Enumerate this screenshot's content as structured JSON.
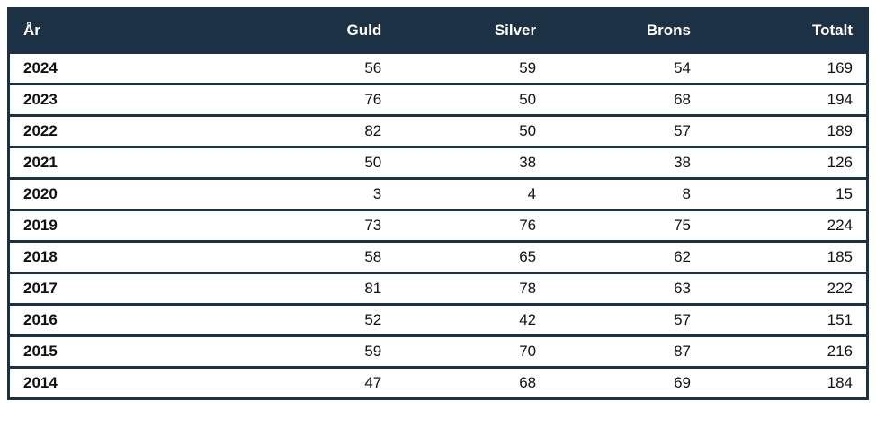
{
  "chart_data": {
    "type": "table",
    "columns": [
      "År",
      "Guld",
      "Silver",
      "Brons",
      "Totalt"
    ],
    "rows": [
      [
        "2024",
        56,
        59,
        54,
        169
      ],
      [
        "2023",
        76,
        50,
        68,
        194
      ],
      [
        "2022",
        82,
        50,
        57,
        189
      ],
      [
        "2021",
        50,
        38,
        38,
        126
      ],
      [
        "2020",
        3,
        4,
        8,
        15
      ],
      [
        "2019",
        73,
        76,
        75,
        224
      ],
      [
        "2018",
        58,
        65,
        62,
        185
      ],
      [
        "2017",
        81,
        78,
        63,
        222
      ],
      [
        "2016",
        52,
        42,
        57,
        151
      ],
      [
        "2015",
        59,
        70,
        87,
        216
      ],
      [
        "2014",
        47,
        68,
        69,
        184
      ]
    ],
    "layout": {
      "header_position": "top",
      "grid": "horizontal-only",
      "year_column_align": "left",
      "numeric_columns_align": "right"
    },
    "colors": {
      "header_bg": "#1d3144",
      "header_text": "#ffffff",
      "row_bg": "#ffffff",
      "border": "#1d3144",
      "cell_text": "#111111",
      "page_bg": "#ffffff"
    }
  }
}
